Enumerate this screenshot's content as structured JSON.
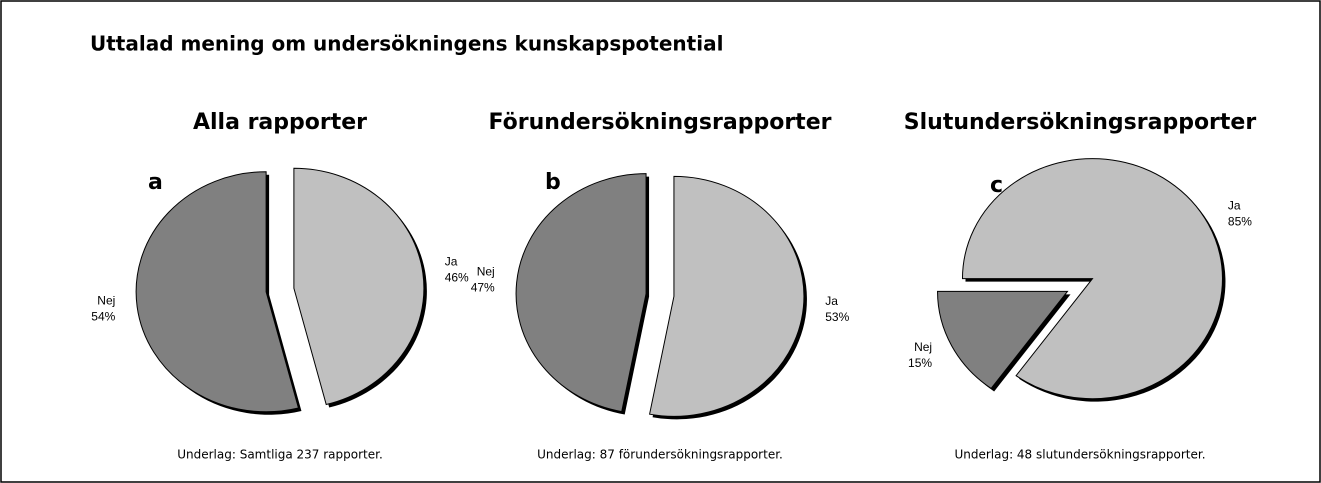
{
  "title": "Uttalad mening om undersökningens kunskapspotential",
  "chart_data": [
    {
      "type": "pie",
      "title": "Alla rapporter",
      "annotation": "a",
      "caption": "Underlag: Samtliga 237 rapporter.",
      "categories": [
        "Nej",
        "Ja"
      ],
      "values": [
        54,
        46
      ],
      "value_labels": [
        "54%",
        "46%"
      ],
      "colors": [
        "#808080",
        "#c0c0c0"
      ]
    },
    {
      "type": "pie",
      "title": "Förundersökningsrapporter",
      "annotation": "b",
      "caption": "Underlag: 87 förundersökningsrapporter.",
      "categories": [
        "Nej",
        "Ja"
      ],
      "values": [
        47,
        53
      ],
      "value_labels": [
        "47%",
        "53%"
      ],
      "colors": [
        "#808080",
        "#c0c0c0"
      ]
    },
    {
      "type": "pie",
      "title": "Slutundersökningsrapporter",
      "annotation": "c",
      "caption": "Underlag: 48 slutundersökningsrapporter.",
      "categories": [
        "Nej",
        "Ja"
      ],
      "values": [
        15,
        85
      ],
      "value_labels": [
        "15%",
        "85%"
      ],
      "colors": [
        "#808080",
        "#c0c0c0"
      ]
    }
  ]
}
